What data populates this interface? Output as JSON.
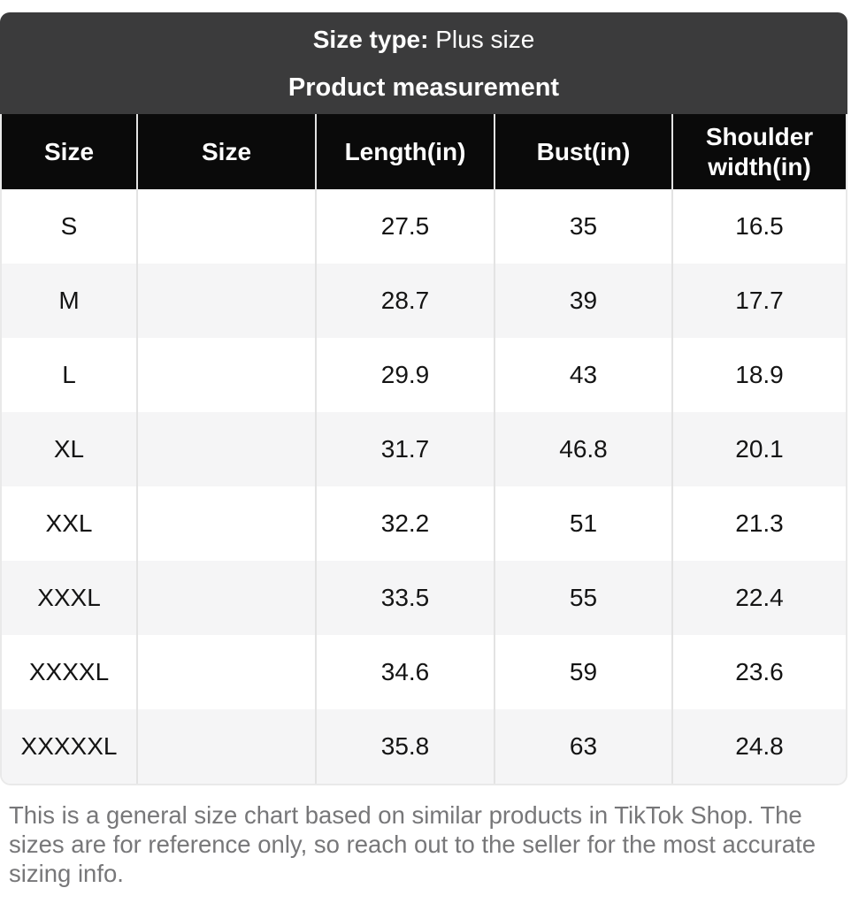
{
  "header": {
    "size_type_label": "Size type:",
    "size_type_value": "Plus size",
    "title": "Product measurement"
  },
  "table": {
    "columns": [
      "Size",
      "Size",
      "Length(in)",
      "Bust(in)",
      "Shoulder width(in)"
    ],
    "rows": [
      [
        "S",
        "",
        "27.5",
        "35",
        "16.5"
      ],
      [
        "M",
        "",
        "28.7",
        "39",
        "17.7"
      ],
      [
        "L",
        "",
        "29.9",
        "43",
        "18.9"
      ],
      [
        "XL",
        "",
        "31.7",
        "46.8",
        "20.1"
      ],
      [
        "XXL",
        "",
        "32.2",
        "51",
        "21.3"
      ],
      [
        "XXXL",
        "",
        "33.5",
        "55",
        "22.4"
      ],
      [
        "XXXXL",
        "",
        "34.6",
        "59",
        "23.6"
      ],
      [
        "XXXXXL",
        "",
        "35.8",
        "63",
        "24.8"
      ]
    ]
  },
  "disclaimer": "This is a general size chart based on similar products in TikTok Shop. The sizes are for reference only, so reach out to the seller for the most accurate sizing info.",
  "colors": {
    "card_header_bg": "#3b3b3c",
    "table_header_bg": "#0a0a0a",
    "row_alt_bg": "#f5f5f6",
    "border": "#e3e3e3",
    "disclaimer_text": "#777779"
  }
}
